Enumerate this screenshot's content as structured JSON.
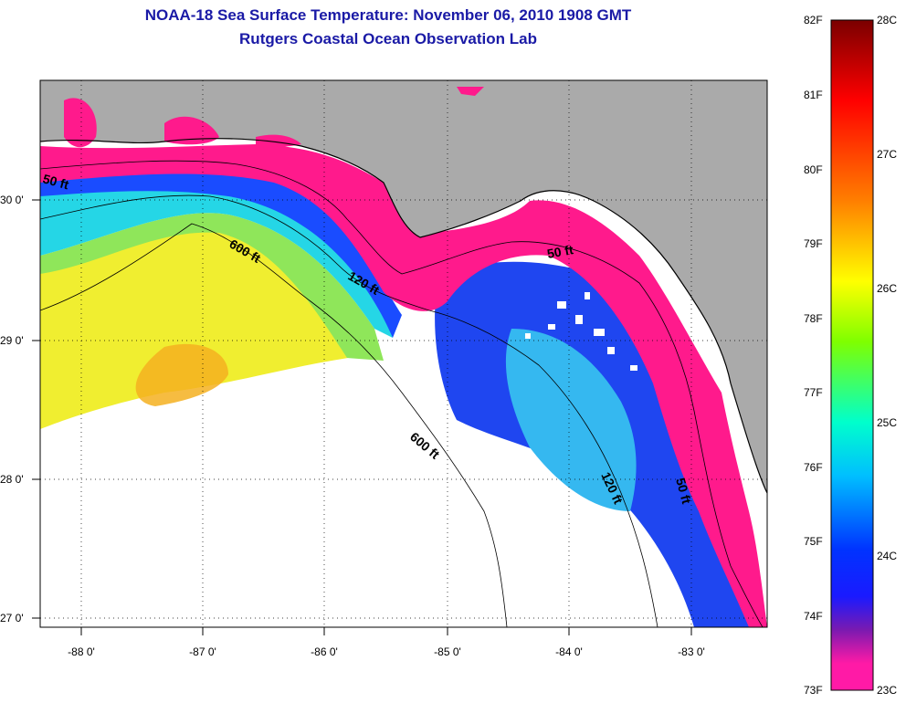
{
  "title": {
    "line1": "NOAA-18 Sea Surface Temperature:  November 06, 2010 1908 GMT",
    "line2": "Rutgers Coastal Ocean Observation Lab"
  },
  "axes": {
    "lat_labels": [
      "30 0'",
      "29 0'",
      "28 0'",
      "27 0'"
    ],
    "lon_labels": [
      "-88 0'",
      "-87 0'",
      "-86 0'",
      "-85 0'",
      "-84 0'",
      "-83 0'"
    ]
  },
  "isobath_labels": [
    "50 ft",
    "600 ft",
    "120 ft",
    "50 ft",
    "600 ft",
    "120 ft",
    "50 ft"
  ],
  "colorbar": {
    "fahrenheit": [
      "82F",
      "81F",
      "80F",
      "79F",
      "78F",
      "77F",
      "76F",
      "75F",
      "74F",
      "73F"
    ],
    "celsius": [
      "28C",
      "27C",
      "26C",
      "25C",
      "24C",
      "23C"
    ],
    "colors": [
      "#7a0000",
      "#ff0000",
      "#ff7f00",
      "#ffff00",
      "#7fff00",
      "#00ffcc",
      "#00bfff",
      "#0033ff",
      "#1a1aff",
      "#7a1ab0",
      "#ff1aa6"
    ]
  },
  "colors": {
    "land": "#aaaaaa",
    "nearshore": "#ff1a8c",
    "cloud": "#ffffff",
    "title": "#1a1aa6"
  }
}
